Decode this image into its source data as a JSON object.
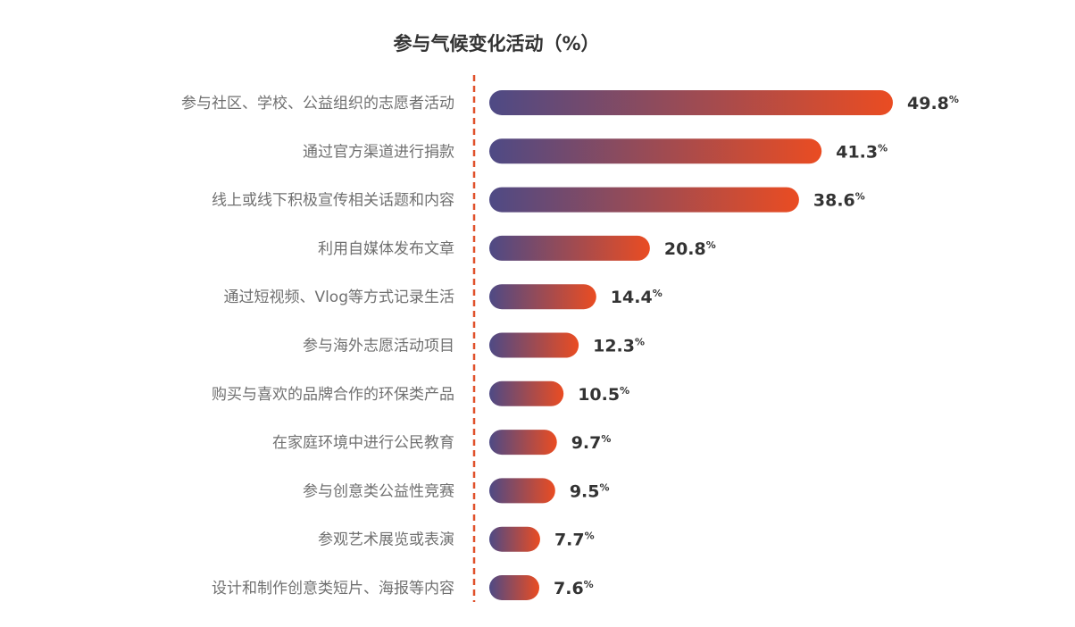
{
  "chart_data": {
    "type": "bar",
    "orientation": "horizontal",
    "title": "参与气候变化活动（%）",
    "unit": "%",
    "categories": [
      "参与社区、学校、公益组织的志愿者活动",
      "通过官方渠道进行捐款",
      "线上或线下积极宣传相关话题和内容",
      "利用自媒体发布文章",
      "通过短视频、Vlog等方式记录生活",
      "参与海外志愿活动项目",
      "购买与喜欢的品牌合作的环保类产品",
      "在家庭环境中进行公民教育",
      "参与创意类公益性竞赛",
      "参观艺术展览或表演",
      "设计和制作创意类短片、海报等内容"
    ],
    "values": [
      49.8,
      41.3,
      38.6,
      20.8,
      14.4,
      12.3,
      10.5,
      9.7,
      9.5,
      7.7,
      7.6
    ],
    "value_labels": [
      "49.8",
      "41.3",
      "38.6",
      "20.8",
      "14.4",
      "12.3",
      "10.5",
      "9.7",
      "9.5",
      "7.7",
      "7.6"
    ],
    "xlim": [
      0,
      49.8
    ],
    "grid": false,
    "legend": "none",
    "colors": {
      "bar_start": "#4e4a85",
      "bar_end": "#ea4c22",
      "axis_line": "#e0502a",
      "title": "#333333",
      "category_label": "#707070",
      "value_label": "#333333"
    }
  }
}
